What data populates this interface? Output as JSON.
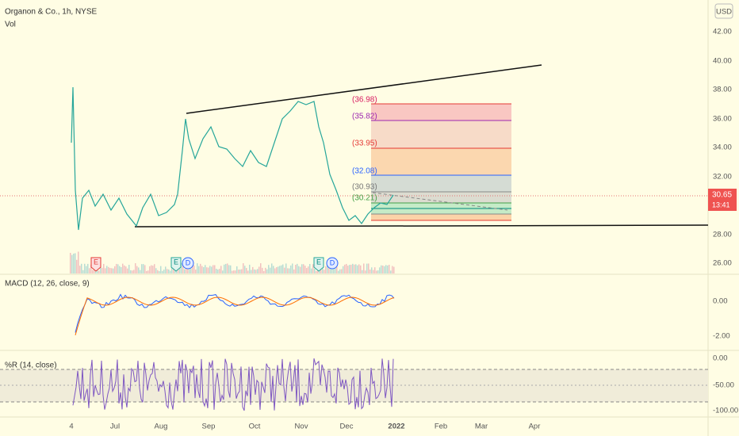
{
  "header": {
    "symbol": "Organon & Co., 1h, NYSE",
    "volume": "Vol"
  },
  "price_axis": {
    "currency": "USD",
    "labels": [
      "42.00",
      "40.00",
      "38.00",
      "36.00",
      "34.00",
      "32.00",
      "28.00",
      "26.00"
    ],
    "current_price": "30.65",
    "countdown": "13:41"
  },
  "fib_labels": [
    "(36.98)",
    "(35.82)",
    "(33.95)",
    "(32.08)",
    "(30.93)",
    "(30.21)"
  ],
  "event_markers": [
    "E",
    "E",
    "D",
    "E",
    "D"
  ],
  "macd": {
    "title": "MACD (12, 26, close, 9)",
    "axis": [
      "0.00",
      "-2.00"
    ]
  },
  "williams_r": {
    "title": "%R (14, close)",
    "axis": [
      "0.00",
      "-50.00",
      "-100.00"
    ]
  },
  "time_axis": [
    "4",
    "Jul",
    "Aug",
    "Sep",
    "Oct",
    "Nov",
    "Dec",
    "2022",
    "Feb",
    "Mar",
    "Apr"
  ]
}
